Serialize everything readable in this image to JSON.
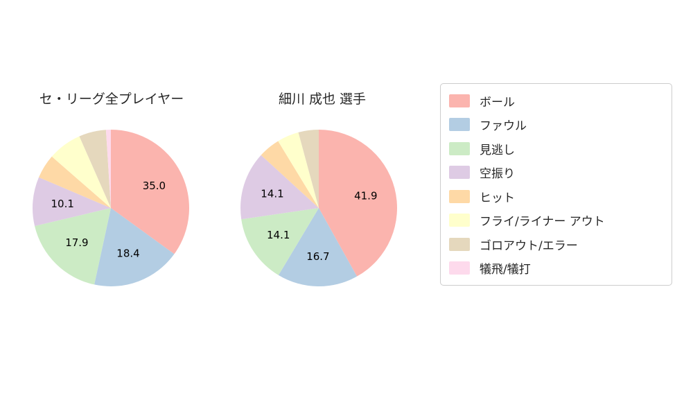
{
  "chart_data": [
    {
      "type": "pie",
      "title": "セ・リーグ全プレイヤー",
      "categories": [
        "ボール",
        "ファウル",
        "見逃し",
        "空振り",
        "ヒット",
        "フライ/ライナー アウト",
        "ゴロアウト/エラー",
        "犠飛/犠打"
      ],
      "values": [
        35.0,
        18.4,
        17.9,
        10.1,
        5.0,
        7.0,
        5.6,
        1.0
      ],
      "value_labels_shown": [
        "35.0",
        "18.4",
        "17.9",
        "10.1"
      ],
      "label_min_value": 10,
      "start_angle_deg": 90,
      "direction": "clockwise"
    },
    {
      "type": "pie",
      "title": "細川 成也  選手",
      "categories": [
        "ボール",
        "ファウル",
        "見逃し",
        "空振り",
        "ヒット",
        "フライ/ライナー アウト",
        "ゴロアウト/エラー",
        "犠飛/犠打"
      ],
      "values": [
        41.9,
        16.7,
        14.1,
        14.1,
        4.5,
        4.5,
        4.2,
        0.0
      ],
      "value_labels_shown": [
        "41.9",
        "16.7",
        "14.1",
        "14.1"
      ],
      "label_min_value": 10,
      "start_angle_deg": 90,
      "direction": "clockwise"
    }
  ],
  "legend": {
    "position": "right",
    "items": [
      {
        "label": "ボール",
        "color": "#fbb4ae"
      },
      {
        "label": "ファウル",
        "color": "#b3cde3"
      },
      {
        "label": "見逃し",
        "color": "#ccebc5"
      },
      {
        "label": "空振り",
        "color": "#decbe4"
      },
      {
        "label": "ヒット",
        "color": "#fed9a6"
      },
      {
        "label": "フライ/ライナー アウト",
        "color": "#ffffcc"
      },
      {
        "label": "ゴロアウト/エラー",
        "color": "#e5d8bd"
      },
      {
        "label": "犠飛/犠打",
        "color": "#fddaec"
      }
    ]
  }
}
